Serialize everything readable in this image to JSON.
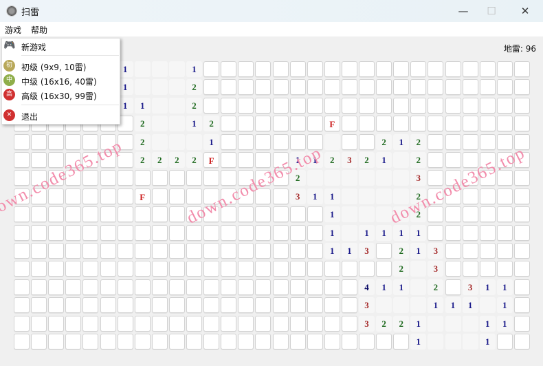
{
  "window": {
    "title": "扫雷",
    "minimize": "—",
    "maximize": "☐",
    "close": "✕"
  },
  "menubar": {
    "items": [
      "游戏",
      "帮助"
    ]
  },
  "status": {
    "mines_label": "地雷: 96"
  },
  "game_menu": {
    "new_game": "新游戏",
    "beginner": {
      "label": "初级 (9x9, 10雷)",
      "badge": "初",
      "color": "#b8a85a"
    },
    "intermediate": {
      "label": "中级 (16x16, 40雷)",
      "badge": "中",
      "color": "#8fae4a"
    },
    "expert": {
      "label": "高级 (16x30, 99雷)",
      "badge": "高",
      "color": "#d03030"
    },
    "exit": {
      "label": "退出",
      "badge": "✕",
      "color": "#d03030"
    }
  },
  "board": {
    "rows_count": 16,
    "cols_count": 30,
    "legend": {
      ".": "unrevealed",
      "_": "revealed-empty",
      "F": "flag"
    },
    "number_colors": {
      "1": "#1a1a8a",
      "2": "#1f6a1f",
      "3": "#a52a2a",
      "4": "#0a0a66",
      "F": "#cc1f1f"
    },
    "rows": [
      "......1___1...................",
      "......1___2...................",
      "......11__2...................",
      ".......2__12......F...........",
      ".......2___1......_..212......",
      ".......2222F....112321_2......",
      "................2______3......",
      ".......F........311____2......",
      "..................1____2......",
      "..................1_1111......",
      "..................113.213.....",
      "......................2_3.....",
      "....................411_2.311.",
      "....................3___111_1.",
      "....................3221___11.",
      ".......................1___1.."
    ]
  },
  "watermark": "down.code365.top"
}
